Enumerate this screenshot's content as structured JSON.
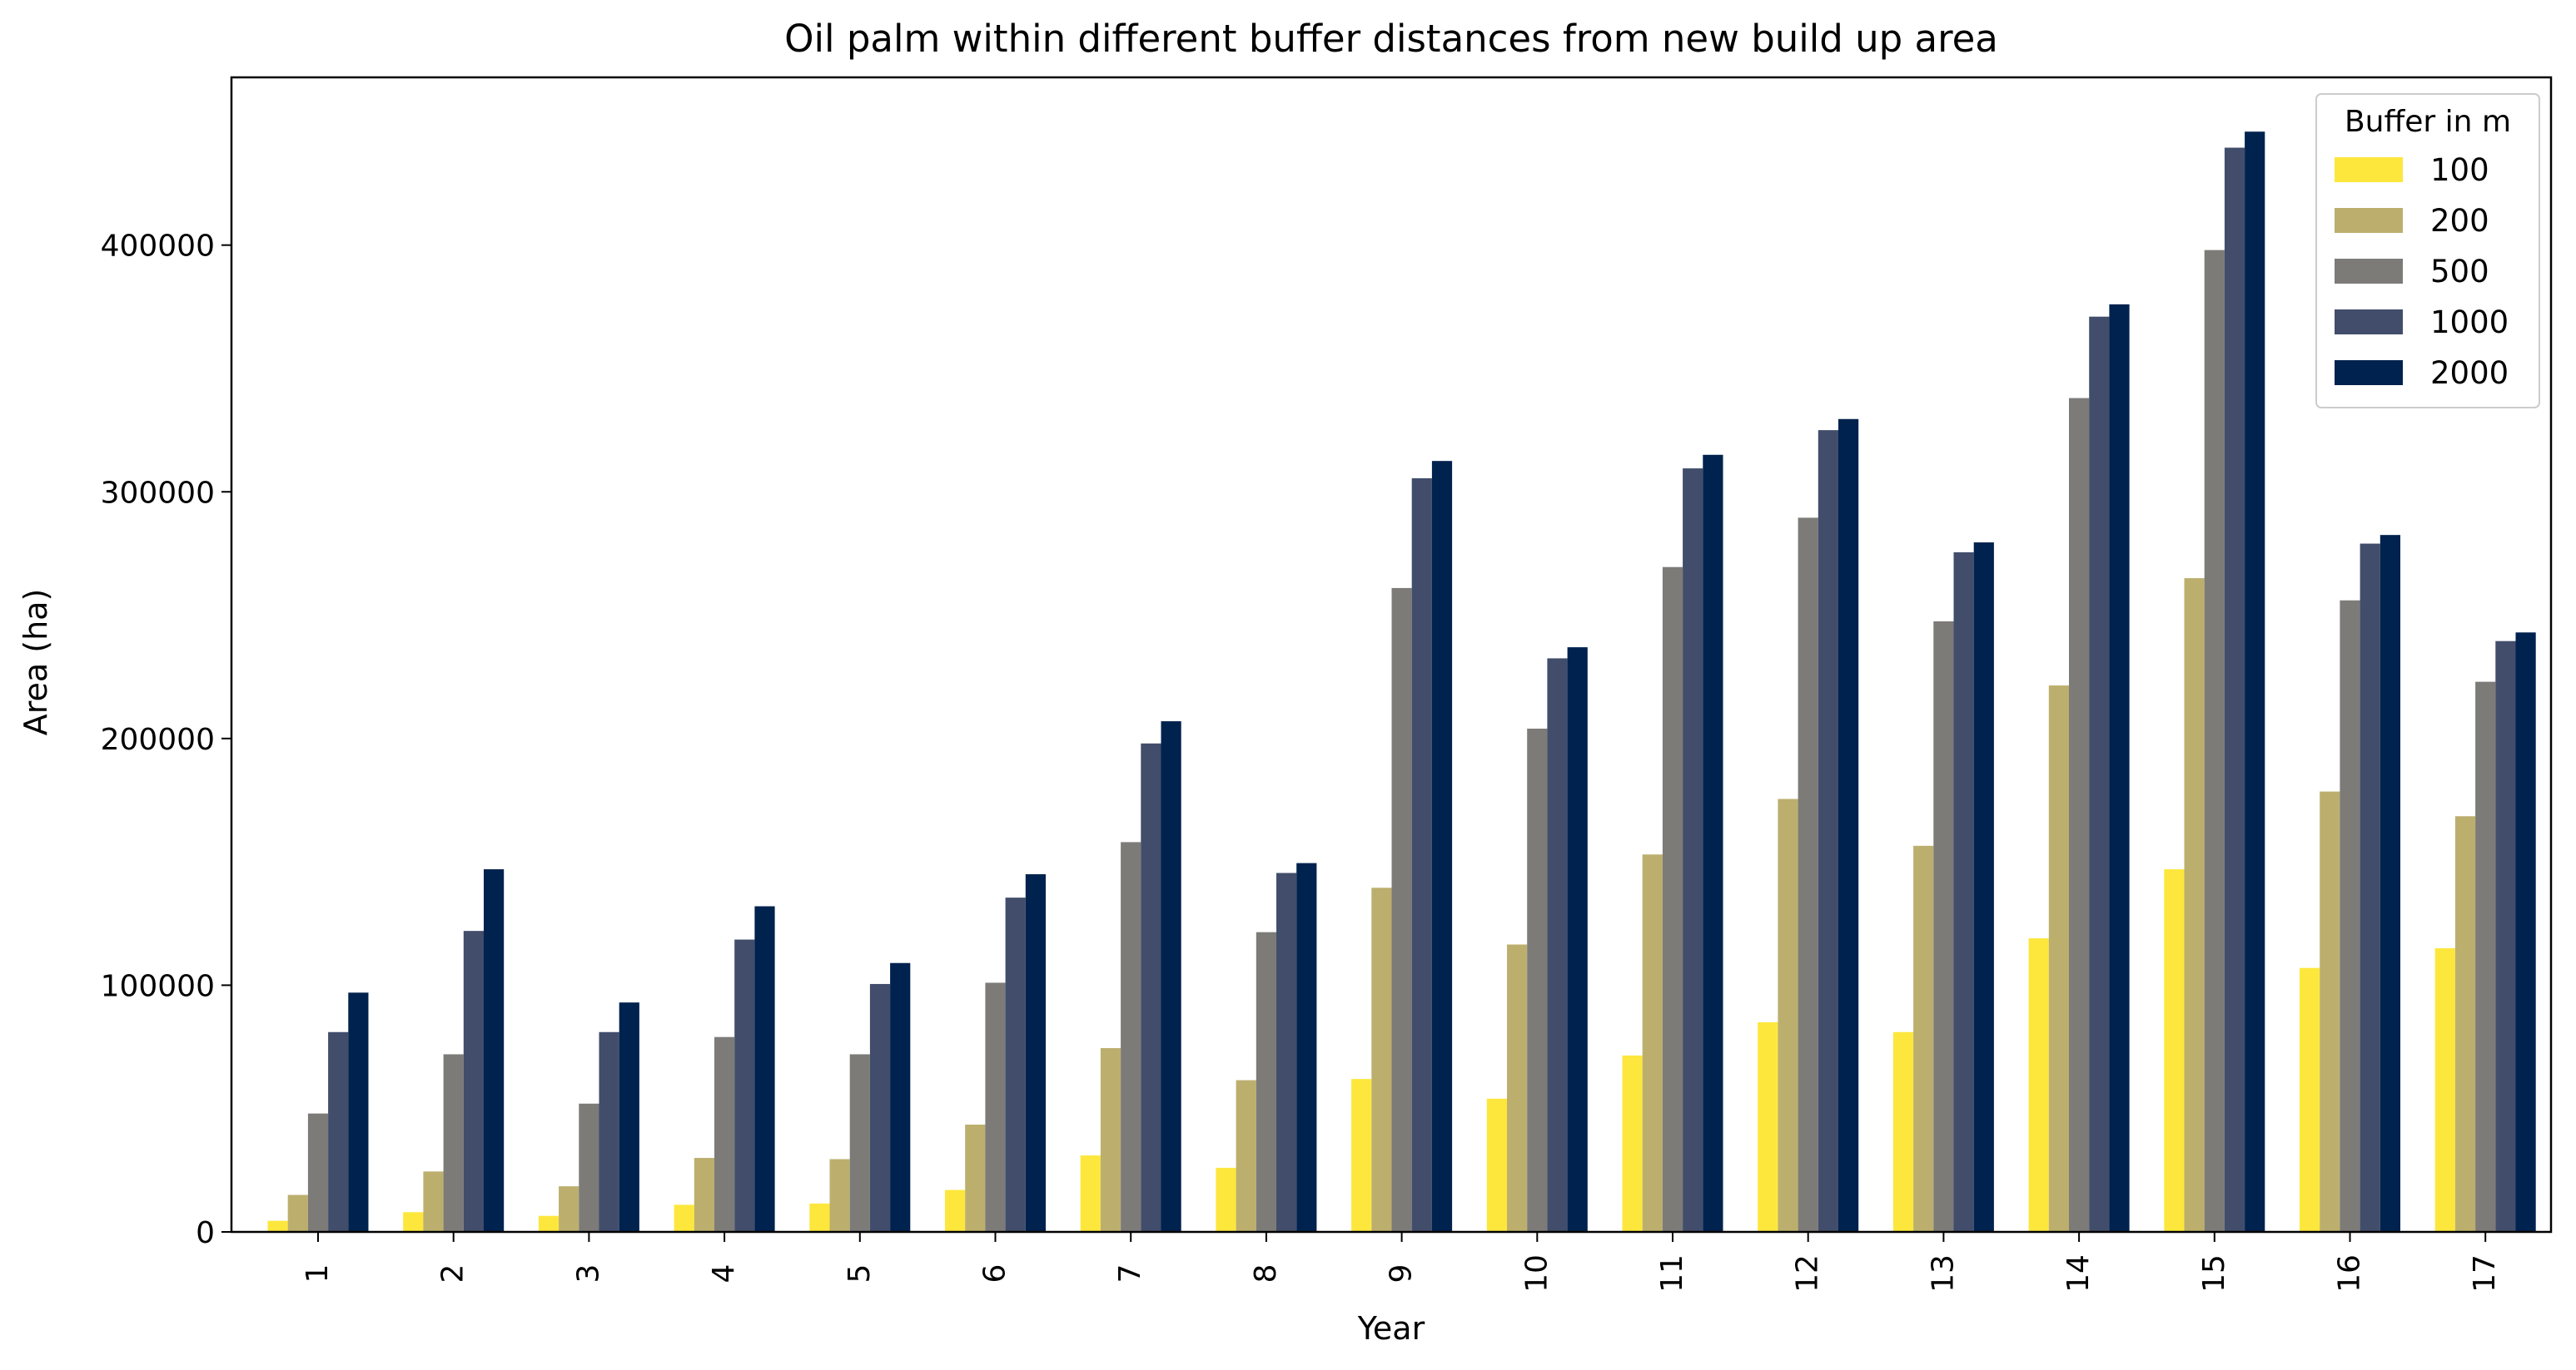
{
  "chart_data": {
    "type": "bar",
    "title": "Oil palm within different buffer distances from new build up area",
    "xlabel": "Year",
    "ylabel": "Area (ha)",
    "ylim": [
      0,
      468000
    ],
    "yticks": [
      0,
      100000,
      200000,
      300000,
      400000
    ],
    "categories": [
      "1",
      "2",
      "3",
      "4",
      "5",
      "6",
      "7",
      "8",
      "9",
      "10",
      "11",
      "12",
      "13",
      "14",
      "15",
      "16",
      "17"
    ],
    "legend": {
      "title": "Buffer in m",
      "position": "top-right"
    },
    "grid": false,
    "series": [
      {
        "name": "100",
        "color": "#fde73c",
        "values": [
          4500,
          8000,
          6500,
          11000,
          11500,
          17000,
          31000,
          26000,
          62000,
          54000,
          71500,
          85000,
          81000,
          119000,
          147000,
          107000,
          115000
        ]
      },
      {
        "name": "200",
        "color": "#bcaf6e",
        "values": [
          15000,
          24500,
          18500,
          30000,
          29500,
          43500,
          74500,
          61500,
          139500,
          116500,
          153000,
          175500,
          156500,
          221500,
          265000,
          178500,
          168500
        ]
      },
      {
        "name": "500",
        "color": "#7c7b78",
        "values": [
          48000,
          72000,
          52000,
          79000,
          72000,
          101000,
          158000,
          121500,
          261000,
          204000,
          269500,
          289500,
          247500,
          338000,
          398000,
          256000,
          223000
        ]
      },
      {
        "name": "1000",
        "color": "#414d6b",
        "values": [
          81000,
          122000,
          81000,
          118500,
          100500,
          135500,
          198000,
          145500,
          305500,
          232500,
          309500,
          325000,
          275500,
          371000,
          439500,
          279000,
          239500
        ]
      },
      {
        "name": "2000",
        "color": "#00224e",
        "values": [
          97000,
          147000,
          93000,
          132000,
          109000,
          145000,
          207000,
          149500,
          312500,
          237000,
          315000,
          329500,
          279500,
          376000,
          446000,
          282500,
          243000
        ]
      }
    ]
  }
}
